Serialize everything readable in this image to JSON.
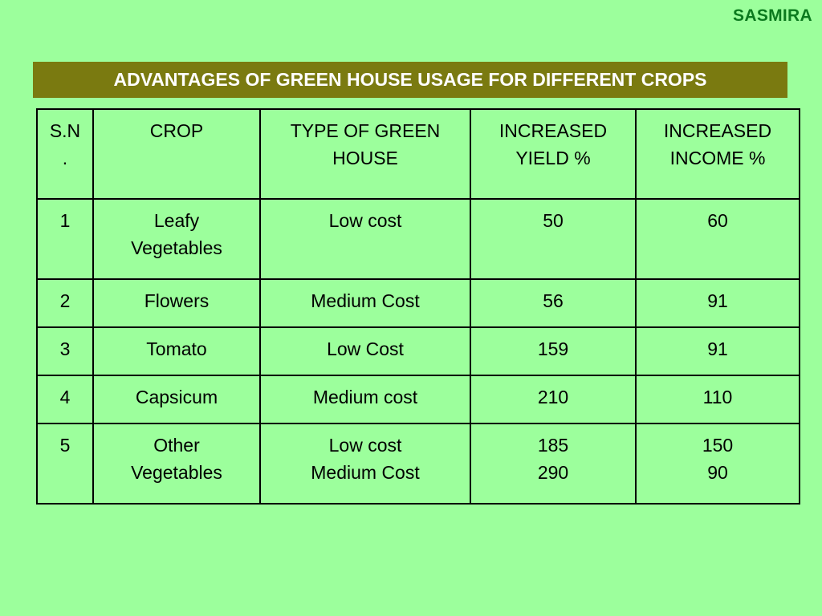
{
  "brand": "SASMIRA",
  "title": "ADVANTAGES OF GREEN HOUSE USAGE FOR DIFFERENT CROPS",
  "colors": {
    "background": "#9cff9c",
    "title_bar": "#7a7a10",
    "brand_text": "#0b7a1e"
  },
  "table": {
    "headers": [
      [
        "S.N",
        "."
      ],
      [
        "CROP"
      ],
      [
        "TYPE OF GREEN",
        "HOUSE"
      ],
      [
        "INCREASED",
        "YIELD %"
      ],
      [
        "INCREASED",
        "INCOME %"
      ]
    ],
    "rows": [
      {
        "sn": "1",
        "crop": [
          "Leafy",
          "Vegetables"
        ],
        "type": [
          "Low cost"
        ],
        "yield": [
          "50"
        ],
        "income": [
          "60"
        ]
      },
      {
        "sn": "2",
        "crop": [
          "Flowers"
        ],
        "type": [
          "Medium Cost"
        ],
        "yield": [
          "56"
        ],
        "income": [
          "91"
        ]
      },
      {
        "sn": "3",
        "crop": [
          "Tomato"
        ],
        "type": [
          "Low Cost"
        ],
        "yield": [
          "159"
        ],
        "income": [
          "91"
        ]
      },
      {
        "sn": "4",
        "crop": [
          "Capsicum"
        ],
        "type": [
          "Medium cost"
        ],
        "yield": [
          "210"
        ],
        "income": [
          "110"
        ]
      },
      {
        "sn": "5",
        "crop": [
          "Other",
          "Vegetables"
        ],
        "type": [
          "Low cost",
          "Medium Cost"
        ],
        "yield": [
          "185",
          "290"
        ],
        "income": [
          "150",
          "90"
        ]
      }
    ]
  }
}
